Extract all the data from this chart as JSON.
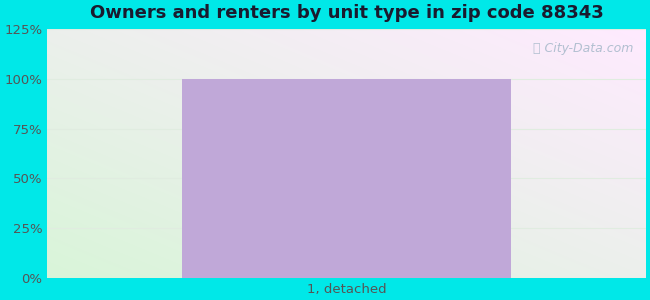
{
  "title": "Owners and renters by unit type in zip code 88343",
  "categories": [
    "1, detached"
  ],
  "values": [
    100
  ],
  "bar_color": "#c0a8d8",
  "bar_width": 0.55,
  "ylim": [
    0,
    125
  ],
  "yticks": [
    0,
    25,
    50,
    75,
    100,
    125
  ],
  "ytick_labels": [
    "0%",
    "25%",
    "50%",
    "75%",
    "100%",
    "125%"
  ],
  "title_fontsize": 13,
  "tick_fontsize": 9.5,
  "xlabel_fontsize": 9.5,
  "outer_bg": "#00e8e8",
  "watermark_text": "City-Data.com",
  "watermark_color": "#aabbcc",
  "gridline_color": "#e0ece0",
  "title_color": "#1a1a2e",
  "bg_color_topleft": "#c8eac8",
  "bg_color_bottomright": "#f0faf0",
  "bg_color_topright": "#e8f8f8",
  "tick_color": "#555555"
}
